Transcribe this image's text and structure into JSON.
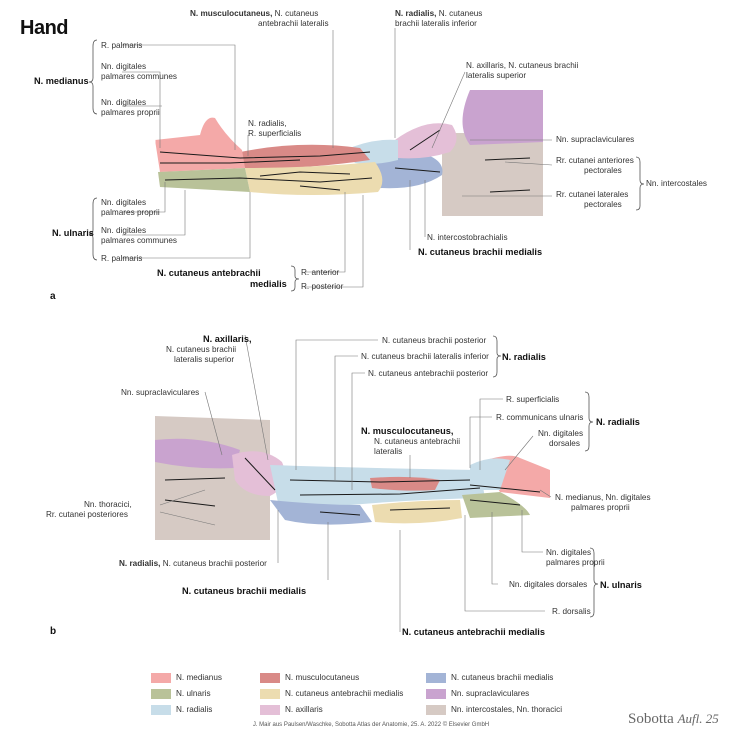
{
  "title": "Hand",
  "panels": {
    "a": "a",
    "b": "b"
  },
  "colors": {
    "medianus": "#f4a9a8",
    "musculocutaneus": "#d98a87",
    "brachii_medialis": "#a3b4d6",
    "ulnaris": "#b9c299",
    "antebrachii_medialis": "#ecdcb0",
    "supraclaviculares": "#c9a3cf",
    "radialis": "#c7dde9",
    "axillaris": "#e4bfd7",
    "intercostales": "#d6cac4",
    "nerve": "#1a1a1a"
  },
  "fig_a": {
    "musculocutaneus_bold": "N. musculocutaneus,",
    "musculocutaneus_rest": " N. cutaneus",
    "musculocutaneus_line2": "antebrachii lateralis",
    "radialis_bold": "N. radialis,",
    "radialis_rest": " N. cutaneus",
    "radialis_line2": "brachii lateralis inferior",
    "medianus": "N. medianus",
    "r_palmaris": "R. palmaris",
    "nn_dig_pc_1": "Nn. digitales",
    "nn_dig_pc_2": "palmares communes",
    "nn_dig_pp_1": "Nn. digitales",
    "nn_dig_pp_2": "palmares proprii",
    "r_superficialis_1": "N. radialis,",
    "r_superficialis_2": "R. superficialis",
    "axillaris_1": "N. axillaris, N. cutaneus brachii",
    "axillaris_2": "lateralis superior",
    "supraclaviculares": "Nn. supraclaviculares",
    "rr_ant_1": "Rr. cutanei anteriores",
    "rr_ant_2": "pectorales",
    "intercostales": "Nn. intercostales",
    "rr_lat_1": "Rr. cutanei laterales",
    "rr_lat_2": "pectorales",
    "ulnaris": "N. ulnaris",
    "u_dig_pp_1": "Nn. digitales",
    "u_dig_pp_2": "palmares proprii",
    "u_dig_pc_1": "Nn. digitales",
    "u_dig_pc_2": "palmares communes",
    "u_r_palmaris": "R. palmaris",
    "intercostobrachialis": "N. intercostobrachialis",
    "brachii_medialis": "N. cutaneus brachii medialis",
    "antebrachii_1": "N. cutaneus antebrachii",
    "antebrachii_2": "medialis",
    "r_anterior": "R. anterior",
    "r_posterior": "R. posterior"
  },
  "fig_b": {
    "axillaris_bold": "N. axillaris,",
    "axillaris_2": "N. cutaneus brachii",
    "axillaris_3": "lateralis superior",
    "brachii_posterior": "N. cutaneus brachii posterior",
    "brachii_lat_inf": "N. cutaneus brachii lateralis inferior",
    "antebrachii_posterior": "N. cutaneus antebrachii posterior",
    "radialis": "N. radialis",
    "supraclaviculares": "Nn. supraclaviculares",
    "r_superficialis": "R. superficialis",
    "r_comm_ulnaris": "R. communicans ulnaris",
    "nn_dig_dorsales_1": "Nn. digitales",
    "nn_dig_dorsales_2": "dorsales",
    "radialis2": "N. radialis",
    "musculocutaneus_bold": "N. musculocutaneus,",
    "musculocutaneus_2": "N. cutaneus antebrachii",
    "musculocutaneus_3": "lateralis",
    "thoracici_1": "Nn. thoracici,",
    "thoracici_2": "Rr. cutanei posteriores",
    "medianus_1": "N. medianus, Nn. digitales",
    "medianus_2": "palmares proprii",
    "radialis_bold": "N. radialis,",
    "radialis_rest": " N. cutaneus brachii posterior",
    "brachii_medialis": "N. cutaneus brachii medialis",
    "u_dig_pp_1": "Nn. digitales",
    "u_dig_pp_2": "palmares proprii",
    "u_dig_dorsales": "Nn. digitales dorsales",
    "ulnaris": "N. ulnaris",
    "r_dorsalis": "R. dorsalis",
    "antebrachii_medialis": "N. cutaneus antebrachii medialis"
  },
  "legend": [
    {
      "label": "N. medianus",
      "color": "#f4a9a8"
    },
    {
      "label": "N. musculocutaneus",
      "color": "#d98a87"
    },
    {
      "label": "N. cutaneus brachii medialis",
      "color": "#a3b4d6"
    },
    {
      "label": "N. ulnaris",
      "color": "#b9c299"
    },
    {
      "label": "N. cutaneus antebrachii medialis",
      "color": "#ecdcb0"
    },
    {
      "label": "Nn. supraclaviculares",
      "color": "#c9a3cf"
    },
    {
      "label": "N. radialis",
      "color": "#c7dde9"
    },
    {
      "label": "N. axillaris",
      "color": "#e4bfd7"
    },
    {
      "label": "Nn. intercostales, Nn. thoracici",
      "color": "#d6cac4"
    }
  ],
  "credit": "J. Mair aus Paulsen/Waschke, Sobotta Atlas der Anatomie, 25. A. 2022 © Elsevier GmbH",
  "brand": "Sobotta",
  "brand_edition": "Aufl. 25"
}
